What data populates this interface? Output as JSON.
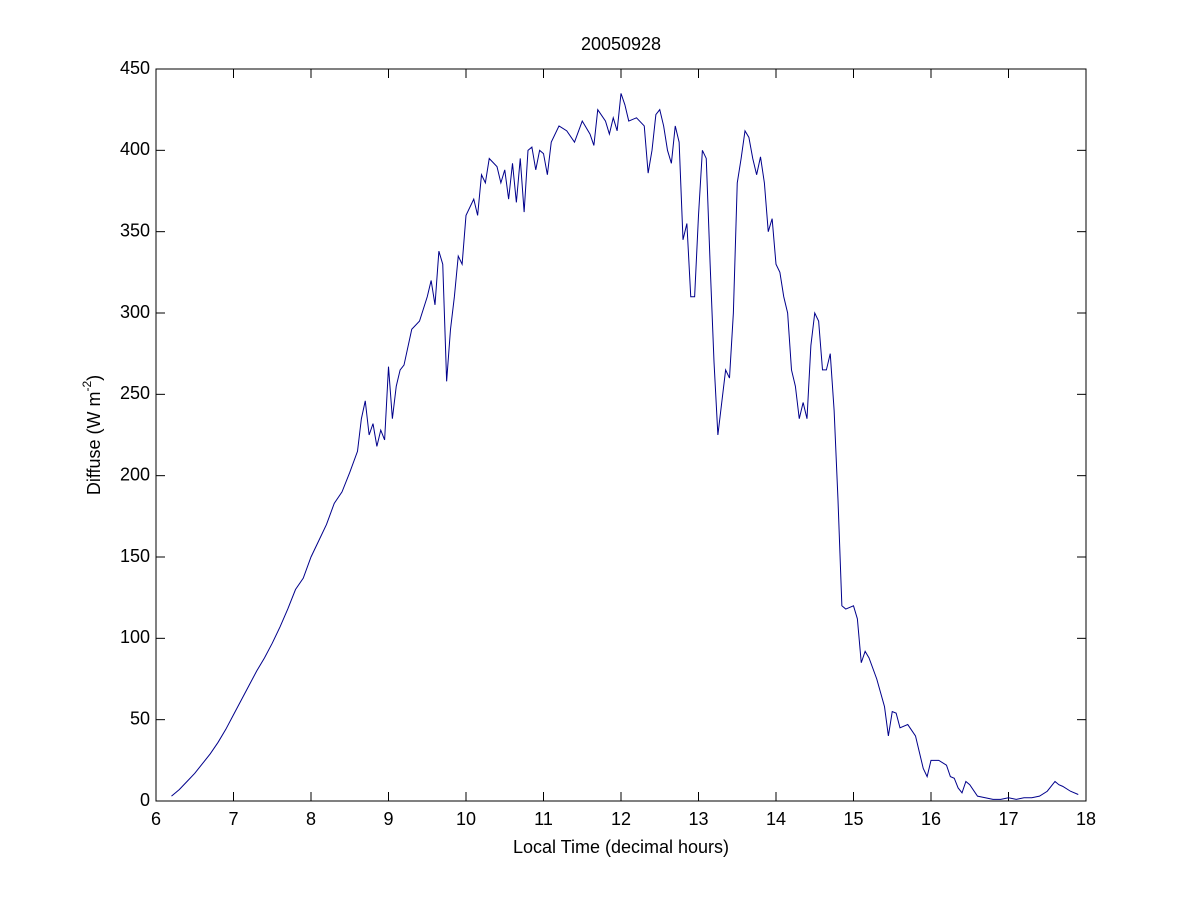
{
  "chart_data": {
    "type": "line",
    "title": "20050928",
    "xlabel": "Local Time (decimal hours)",
    "ylabel": [
      "Diffuse (W m",
      "-2",
      ")"
    ],
    "color": "#00008b",
    "xlim": [
      6,
      18
    ],
    "xticks": [
      6,
      7,
      8,
      9,
      10,
      11,
      12,
      13,
      14,
      15,
      16,
      17,
      18
    ],
    "ylim": [
      0,
      450
    ],
    "yticks": [
      0,
      50,
      100,
      150,
      200,
      250,
      300,
      350,
      400,
      450
    ],
    "grid": false,
    "x": [
      6.2,
      6.3,
      6.4,
      6.5,
      6.6,
      6.7,
      6.8,
      6.9,
      7.0,
      7.1,
      7.2,
      7.3,
      7.4,
      7.5,
      7.6,
      7.7,
      7.8,
      7.9,
      8.0,
      8.1,
      8.2,
      8.3,
      8.4,
      8.5,
      8.6,
      8.65,
      8.7,
      8.75,
      8.8,
      8.85,
      8.9,
      8.95,
      9.0,
      9.05,
      9.1,
      9.15,
      9.2,
      9.3,
      9.4,
      9.5,
      9.55,
      9.6,
      9.65,
      9.7,
      9.75,
      9.8,
      9.85,
      9.9,
      9.95,
      10.0,
      10.1,
      10.15,
      10.2,
      10.25,
      10.3,
      10.4,
      10.45,
      10.5,
      10.55,
      10.6,
      10.65,
      10.7,
      10.75,
      10.8,
      10.85,
      10.9,
      10.95,
      11.0,
      11.05,
      11.1,
      11.2,
      11.3,
      11.4,
      11.5,
      11.6,
      11.65,
      11.7,
      11.8,
      11.85,
      11.9,
      11.95,
      12.0,
      12.05,
      12.1,
      12.2,
      12.3,
      12.35,
      12.4,
      12.45,
      12.5,
      12.55,
      12.6,
      12.65,
      12.7,
      12.75,
      12.8,
      12.85,
      12.9,
      12.95,
      13.0,
      13.05,
      13.1,
      13.15,
      13.2,
      13.25,
      13.3,
      13.35,
      13.4,
      13.45,
      13.5,
      13.55,
      13.6,
      13.65,
      13.7,
      13.75,
      13.8,
      13.85,
      13.9,
      13.95,
      14.0,
      14.05,
      14.1,
      14.15,
      14.2,
      14.25,
      14.3,
      14.35,
      14.4,
      14.45,
      14.5,
      14.55,
      14.6,
      14.65,
      14.7,
      14.75,
      14.8,
      14.85,
      14.9,
      15.0,
      15.05,
      15.1,
      15.15,
      15.2,
      15.3,
      15.4,
      15.45,
      15.5,
      15.55,
      15.6,
      15.7,
      15.8,
      15.85,
      15.9,
      15.95,
      16.0,
      16.1,
      16.2,
      16.25,
      16.3,
      16.35,
      16.4,
      16.45,
      16.5,
      16.6,
      16.7,
      16.8,
      16.9,
      17.0,
      17.1,
      17.2,
      17.3,
      17.4,
      17.5,
      17.6,
      17.65,
      17.7,
      17.8,
      17.9
    ],
    "values": [
      3,
      7,
      12,
      17,
      23,
      29,
      36,
      44,
      53,
      62,
      71,
      80,
      88,
      97,
      107,
      118,
      130,
      137,
      150,
      160,
      170,
      183,
      190,
      202,
      215,
      235,
      246,
      225,
      232,
      218,
      228,
      222,
      267,
      235,
      255,
      265,
      268,
      290,
      295,
      310,
      320,
      305,
      338,
      330,
      258,
      290,
      310,
      335,
      330,
      360,
      370,
      360,
      385,
      380,
      395,
      390,
      380,
      388,
      370,
      392,
      368,
      395,
      362,
      400,
      402,
      388,
      400,
      398,
      385,
      405,
      415,
      412,
      405,
      418,
      410,
      403,
      425,
      418,
      410,
      420,
      412,
      435,
      428,
      418,
      420,
      415,
      386,
      400,
      422,
      425,
      415,
      400,
      392,
      415,
      405,
      345,
      355,
      310,
      310,
      360,
      400,
      395,
      330,
      270,
      225,
      245,
      265,
      260,
      300,
      380,
      395,
      412,
      408,
      395,
      385,
      396,
      380,
      350,
      358,
      330,
      325,
      310,
      300,
      265,
      255,
      235,
      245,
      235,
      280,
      300,
      295,
      265,
      265,
      275,
      240,
      185,
      120,
      118,
      120,
      112,
      85,
      92,
      88,
      75,
      58,
      40,
      55,
      54,
      45,
      47,
      40,
      30,
      20,
      15,
      25,
      25,
      22,
      15,
      14,
      8,
      5,
      12,
      10,
      3,
      2,
      1,
      1,
      2,
      1,
      2,
      2,
      3,
      6,
      12,
      10,
      9,
      6,
      4
    ]
  }
}
